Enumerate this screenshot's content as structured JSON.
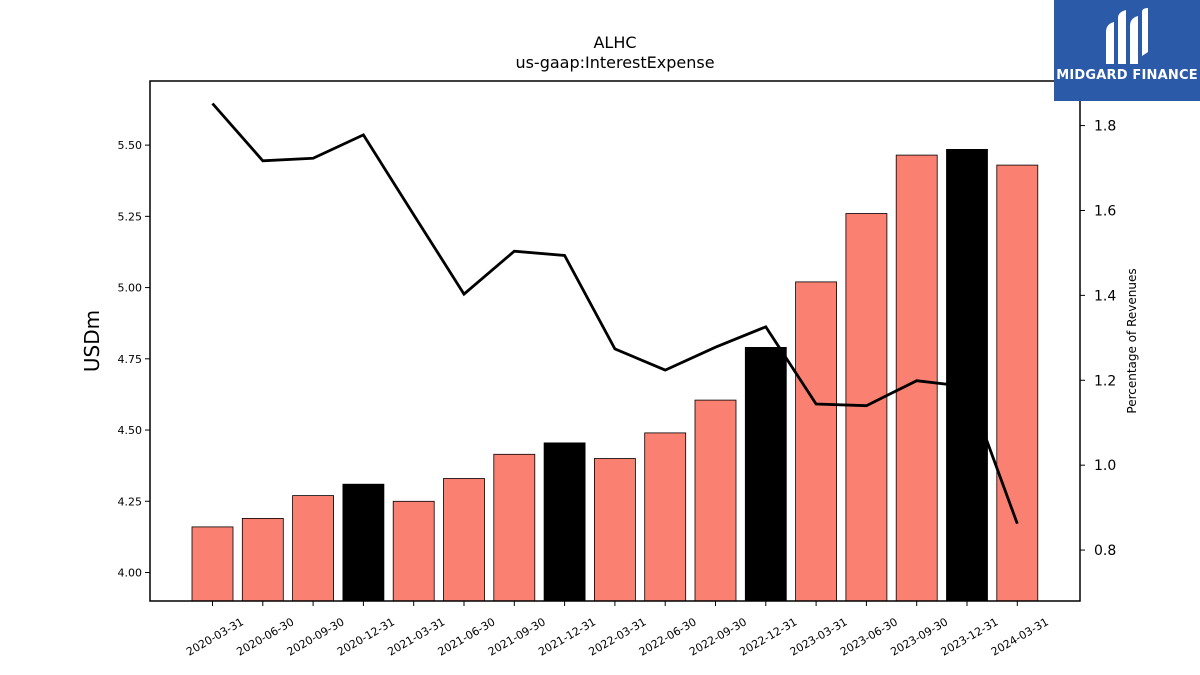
{
  "chart_data": {
    "type": "bar",
    "title": "ALHC",
    "subtitle": "us-gaap:InterestExpense",
    "xlabel": "",
    "ylabel": "USDm",
    "y2label": "Percentage of Revenues",
    "ylim": [
      3.9,
      5.725
    ],
    "y2lim": [
      0.68,
      1.905
    ],
    "yticks": [
      "4.00",
      "4.25",
      "4.50",
      "4.75",
      "5.00",
      "5.25",
      "5.50"
    ],
    "y2ticks": [
      "0.8",
      "1.0",
      "1.2",
      "1.4",
      "1.6",
      "1.8"
    ],
    "grid": false,
    "categories": [
      "2020-03-31",
      "2020-06-30",
      "2020-09-30",
      "2020-12-31",
      "2021-03-31",
      "2021-06-30",
      "2021-09-30",
      "2021-12-31",
      "2022-03-31",
      "2022-06-30",
      "2022-09-30",
      "2022-12-31",
      "2023-03-31",
      "2023-06-30",
      "2023-09-30",
      "2023-12-31",
      "2024-03-31"
    ],
    "series": [
      {
        "axis": "left",
        "kind": "bar",
        "values": [
          4.16,
          4.19,
          4.27,
          4.31,
          4.25,
          4.33,
          4.415,
          4.455,
          4.4,
          4.49,
          4.605,
          4.79,
          5.02,
          5.26,
          5.465,
          5.485,
          5.43
        ],
        "colors": [
          "#fa8072",
          "#fa8072",
          "#fa8072",
          "#000000",
          "#fa8072",
          "#fa8072",
          "#fa8072",
          "#000000",
          "#fa8072",
          "#fa8072",
          "#fa8072",
          "#000000",
          "#fa8072",
          "#fa8072",
          "#fa8072",
          "#000000",
          "#fa8072"
        ]
      },
      {
        "axis": "right",
        "kind": "line",
        "color": "#000000",
        "values": [
          1.852,
          1.717,
          1.723,
          1.778,
          1.59,
          1.403,
          1.504,
          1.494,
          1.274,
          1.224,
          1.278,
          1.326,
          1.144,
          1.14,
          1.199,
          1.185,
          0.862
        ]
      }
    ]
  },
  "logo": {
    "text": "MIDGARD FINANCE",
    "background": "#2b5aa8"
  }
}
